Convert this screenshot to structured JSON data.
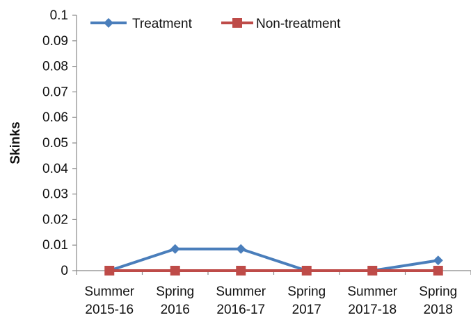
{
  "chart_data": {
    "type": "line",
    "title": "",
    "xlabel": "",
    "ylabel": "Skinks",
    "ylim": [
      0,
      0.1
    ],
    "yticks": [
      "0",
      "0.01",
      "0.02",
      "0.03",
      "0.04",
      "0.05",
      "0.06",
      "0.07",
      "0.08",
      "0.09",
      "0.1"
    ],
    "categories": [
      [
        "Summer",
        "2015-16"
      ],
      [
        "Spring",
        "2016"
      ],
      [
        "Summer",
        "2016-17"
      ],
      [
        "Spring",
        "2017"
      ],
      [
        "Summer",
        "2017-18"
      ],
      [
        "Spring",
        "2018"
      ]
    ],
    "series": [
      {
        "name": "Treatment",
        "values": [
          0,
          0.0085,
          0.0085,
          0,
          0,
          0.004
        ],
        "color": "#4A7EBB",
        "marker": "diamond"
      },
      {
        "name": "Non-treatment",
        "values": [
          0,
          0,
          0,
          0,
          0,
          0
        ],
        "color": "#BE4B48",
        "marker": "square"
      }
    ],
    "legend": "top-left",
    "grid": false
  }
}
